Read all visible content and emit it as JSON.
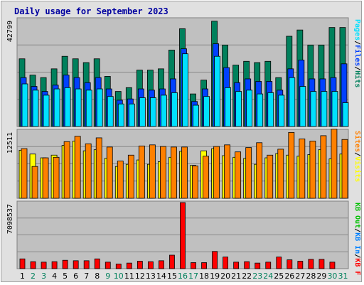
{
  "title": "Daily usage for September 2023",
  "colors": {
    "title": "#0000a0",
    "hits": "#00805c",
    "files": "#0040ff",
    "pages": "#00e0ff",
    "visits": "#ffff00",
    "sites": "#ff8000",
    "kbout": "#00c000",
    "kbin": "#0080ff",
    "kbf": "#ff0000",
    "panel_bg": "#c0c0c0",
    "frame_bg": "#e0e0e0",
    "weekend_day": "#00805c",
    "weekday_day": "#000000"
  },
  "chart_data": [
    {
      "type": "bar",
      "name": "hits-files-pages",
      "y_tick_label": "42799",
      "ymax": 42799,
      "legend": [
        {
          "label": "Hits",
          "color_key": "hits"
        },
        {
          "label": "Files",
          "color_key": "files"
        },
        {
          "label": "Pages",
          "color_key": "pages"
        }
      ],
      "categories": [
        "1",
        "2",
        "3",
        "4",
        "5",
        "6",
        "7",
        "8",
        "9",
        "10",
        "11",
        "12",
        "13",
        "14",
        "15",
        "16",
        "17",
        "18",
        "19",
        "20",
        "21",
        "22",
        "23",
        "24",
        "25",
        "26",
        "27",
        "28",
        "29",
        "30",
        "31"
      ],
      "series": [
        {
          "name": "Hits",
          "values": [
            27000,
            20500,
            19500,
            23000,
            28000,
            27000,
            25500,
            27000,
            20000,
            14000,
            15500,
            22500,
            22500,
            23000,
            30500,
            39000,
            13000,
            18500,
            42000,
            32500,
            24500,
            26000,
            25500,
            26000,
            19500,
            36000,
            38500,
            32500,
            32500,
            39500,
            39500
          ]
        },
        {
          "name": "Files",
          "values": [
            19500,
            16000,
            14000,
            16500,
            20500,
            19500,
            17500,
            19500,
            15000,
            10500,
            11000,
            15000,
            14500,
            15000,
            19000,
            31000,
            10000,
            15000,
            33000,
            23500,
            17500,
            19000,
            18000,
            18000,
            14500,
            23000,
            26500,
            19000,
            19000,
            19500,
            25000
          ]
        },
        {
          "name": "Pages",
          "values": [
            17000,
            14500,
            12500,
            15000,
            15500,
            15000,
            14500,
            15000,
            12000,
            9000,
            9000,
            11500,
            11500,
            12500,
            13500,
            29000,
            8500,
            12000,
            28000,
            15500,
            14000,
            14500,
            13000,
            13500,
            12500,
            19500,
            16000,
            14000,
            14000,
            14000,
            9500
          ]
        }
      ]
    },
    {
      "type": "bar",
      "name": "visits-sites",
      "y_tick_label": "12511",
      "ymax": 12511,
      "legend": [
        {
          "label": "Visits",
          "color_key": "visits"
        },
        {
          "label": "Sites",
          "color_key": "sites"
        }
      ],
      "categories": [
        "1",
        "2",
        "3",
        "4",
        "5",
        "6",
        "7",
        "8",
        "9",
        "10",
        "11",
        "12",
        "13",
        "14",
        "15",
        "16",
        "17",
        "18",
        "19",
        "20",
        "21",
        "22",
        "23",
        "24",
        "25",
        "26",
        "27",
        "28",
        "29",
        "30",
        "31"
      ],
      "series": [
        {
          "name": "Visits",
          "values": [
            8900,
            8200,
            7500,
            8000,
            9800,
            10600,
            8800,
            9000,
            7400,
            5900,
            6300,
            7100,
            6300,
            6800,
            7600,
            8700,
            6100,
            8800,
            9200,
            7900,
            7600,
            7400,
            6300,
            7500,
            8300,
            8000,
            7800,
            8100,
            9000,
            7300,
            8200
          ]
        },
        {
          "name": "Sites",
          "values": [
            9200,
            5900,
            7500,
            7600,
            10500,
            11500,
            10100,
            11200,
            9500,
            6900,
            8000,
            9700,
            9900,
            9600,
            9500,
            9500,
            6000,
            7800,
            9600,
            9900,
            8600,
            9400,
            10300,
            8000,
            9100,
            12200,
            11000,
            10600,
            11600,
            12800,
            10900
          ]
        }
      ]
    },
    {
      "type": "bar",
      "name": "kbytes",
      "y_tick_label": "7098537",
      "ymax": 7098537,
      "legend": [
        {
          "label": "KB F",
          "color_key": "kbf"
        },
        {
          "label": "KB In",
          "color_key": "kbin"
        },
        {
          "label": "KB Out",
          "color_key": "kbout"
        }
      ],
      "categories": [
        "1",
        "2",
        "3",
        "4",
        "5",
        "6",
        "7",
        "8",
        "9",
        "10",
        "11",
        "12",
        "13",
        "14",
        "15",
        "16",
        "17",
        "18",
        "19",
        "20",
        "21",
        "22",
        "23",
        "24",
        "25",
        "26",
        "27",
        "28",
        "29",
        "30",
        "31"
      ],
      "series": [
        {
          "name": "KB F",
          "values": [
            1050000,
            750000,
            700000,
            750000,
            900000,
            850000,
            850000,
            1050000,
            700000,
            500000,
            600000,
            800000,
            750000,
            850000,
            1450000,
            7098537,
            650000,
            650000,
            1850000,
            1250000,
            700000,
            750000,
            600000,
            700000,
            1250000,
            950000,
            800000,
            1000000,
            1000000,
            700000,
            0
          ]
        }
      ]
    }
  ],
  "days": [
    {
      "label": "1",
      "weekend": false
    },
    {
      "label": "2",
      "weekend": true
    },
    {
      "label": "3",
      "weekend": true
    },
    {
      "label": "4",
      "weekend": false
    },
    {
      "label": "5",
      "weekend": false
    },
    {
      "label": "6",
      "weekend": false
    },
    {
      "label": "7",
      "weekend": false
    },
    {
      "label": "8",
      "weekend": false
    },
    {
      "label": "9",
      "weekend": true
    },
    {
      "label": "10",
      "weekend": true
    },
    {
      "label": "11",
      "weekend": false
    },
    {
      "label": "12",
      "weekend": false
    },
    {
      "label": "13",
      "weekend": false
    },
    {
      "label": "14",
      "weekend": false
    },
    {
      "label": "15",
      "weekend": false
    },
    {
      "label": "16",
      "weekend": true
    },
    {
      "label": "17",
      "weekend": true
    },
    {
      "label": "18",
      "weekend": false
    },
    {
      "label": "19",
      "weekend": false
    },
    {
      "label": "20",
      "weekend": false
    },
    {
      "label": "21",
      "weekend": false
    },
    {
      "label": "22",
      "weekend": false
    },
    {
      "label": "23",
      "weekend": true
    },
    {
      "label": "24",
      "weekend": true
    },
    {
      "label": "25",
      "weekend": false
    },
    {
      "label": "26",
      "weekend": false
    },
    {
      "label": "27",
      "weekend": false
    },
    {
      "label": "28",
      "weekend": false
    },
    {
      "label": "29",
      "weekend": false
    },
    {
      "label": "30",
      "weekend": true
    },
    {
      "label": "31",
      "weekend": true
    }
  ]
}
